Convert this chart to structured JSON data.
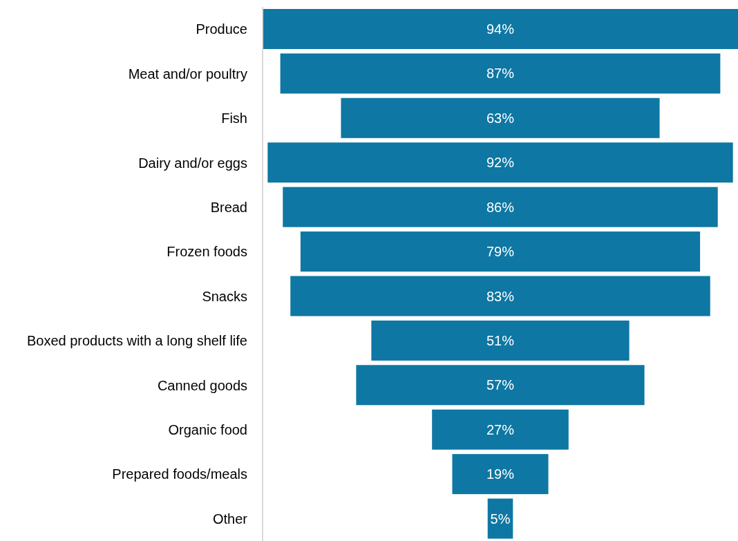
{
  "chart_data": {
    "type": "other",
    "categories": [
      "Produce",
      "Meat and/or poultry",
      "Fish",
      "Dairy and/or eggs",
      "Bread",
      "Frozen foods",
      "Snacks",
      "Boxed products with a long shelf life",
      "Canned goods",
      "Organic food",
      "Prepared foods/meals",
      "Other"
    ],
    "values": [
      94,
      87,
      63,
      92,
      86,
      79,
      83,
      51,
      57,
      27,
      19,
      5
    ],
    "value_labels": [
      "94%",
      "87%",
      "63%",
      "92%",
      "86%",
      "79%",
      "83%",
      "51%",
      "57%",
      "27%",
      "19%",
      "5%"
    ],
    "color": "#0e77a3"
  }
}
